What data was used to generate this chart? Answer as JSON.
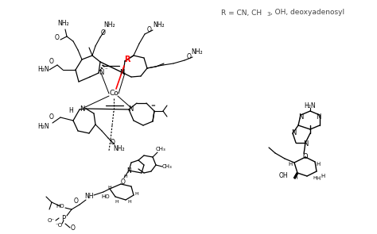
{
  "background_color": "#ffffff",
  "fig_width": 4.74,
  "fig_height": 2.95,
  "dpi": 100,
  "r_label": "R = CN, CH",
  "r_sub": "3",
  "r_after": ", OH, deoxyadenosyl"
}
